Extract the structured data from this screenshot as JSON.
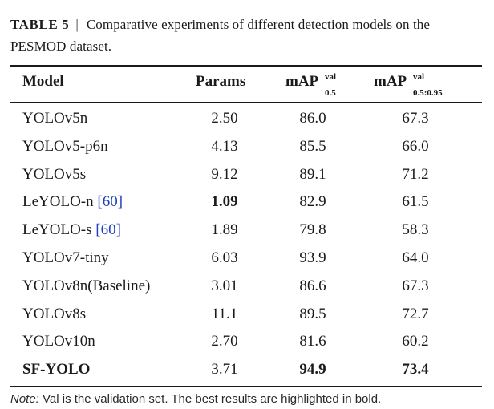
{
  "caption": {
    "label": "TABLE 5",
    "separator": "|",
    "text": "Comparative experiments of different detection models on the PESMOD dataset."
  },
  "table": {
    "headers": {
      "model": "Model",
      "params": "Params",
      "map50": {
        "base": "mAP",
        "sup": "val",
        "sub": "0.5"
      },
      "map5095": {
        "base": "mAP",
        "sup": "val",
        "sub": "0.5:0.95"
      }
    },
    "rows": [
      {
        "model": "YOLOv5n",
        "ref": "",
        "params": "2.50",
        "map50": "86.0",
        "map5095": "67.3",
        "bold_model": false,
        "bold_params": false,
        "bold_map50": false,
        "bold_map5095": false
      },
      {
        "model": "YOLOv5-p6n",
        "ref": "",
        "params": "4.13",
        "map50": "85.5",
        "map5095": "66.0",
        "bold_model": false,
        "bold_params": false,
        "bold_map50": false,
        "bold_map5095": false
      },
      {
        "model": "YOLOv5s",
        "ref": "",
        "params": "9.12",
        "map50": "89.1",
        "map5095": "71.2",
        "bold_model": false,
        "bold_params": false,
        "bold_map50": false,
        "bold_map5095": false
      },
      {
        "model": "LeYOLO-n ",
        "ref": "[60]",
        "params": "1.09",
        "map50": "82.9",
        "map5095": "61.5",
        "bold_model": false,
        "bold_params": true,
        "bold_map50": false,
        "bold_map5095": false
      },
      {
        "model": "LeYOLO-s ",
        "ref": "[60]",
        "params": "1.89",
        "map50": "79.8",
        "map5095": "58.3",
        "bold_model": false,
        "bold_params": false,
        "bold_map50": false,
        "bold_map5095": false
      },
      {
        "model": "YOLOv7-tiny",
        "ref": "",
        "params": "6.03",
        "map50": "93.9",
        "map5095": "64.0",
        "bold_model": false,
        "bold_params": false,
        "bold_map50": false,
        "bold_map5095": false
      },
      {
        "model": "YOLOv8n(Baseline)",
        "ref": "",
        "params": "3.01",
        "map50": "86.6",
        "map5095": "67.3",
        "bold_model": false,
        "bold_params": false,
        "bold_map50": false,
        "bold_map5095": false
      },
      {
        "model": "YOLOv8s",
        "ref": "",
        "params": "11.1",
        "map50": "89.5",
        "map5095": "72.7",
        "bold_model": false,
        "bold_params": false,
        "bold_map50": false,
        "bold_map5095": false
      },
      {
        "model": "YOLOv10n",
        "ref": "",
        "params": "2.70",
        "map50": "81.6",
        "map5095": "60.2",
        "bold_model": false,
        "bold_params": false,
        "bold_map50": false,
        "bold_map5095": false
      },
      {
        "model": "SF-YOLO",
        "ref": "",
        "params": "3.71",
        "map50": "94.9",
        "map5095": "73.4",
        "bold_model": true,
        "bold_params": false,
        "bold_map50": true,
        "bold_map5095": true
      }
    ]
  },
  "note": {
    "label": "Note:",
    "text": " Val is the validation set. The best results are highlighted in bold."
  },
  "colors": {
    "text": "#1a1a1a",
    "reference_link": "#1f3fbf"
  }
}
